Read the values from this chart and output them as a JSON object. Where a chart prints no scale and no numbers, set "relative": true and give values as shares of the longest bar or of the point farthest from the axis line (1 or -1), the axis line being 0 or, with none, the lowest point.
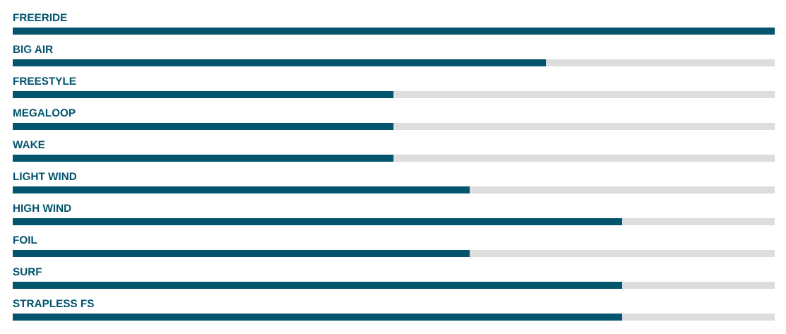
{
  "chart_data": {
    "type": "bar",
    "orientation": "horizontal",
    "stacked": true,
    "relative": true,
    "categories": [
      "FREERIDE",
      "BIG AIR",
      "FREESTYLE",
      "MEGALOOP",
      "WAKE",
      "LIGHT WIND",
      "HIGH WIND",
      "FOIL",
      "SURF",
      "STRAPLESS FS"
    ],
    "series": [
      {
        "color": "#03546d",
        "values": [
          1,
          0.7,
          0.5,
          0.5,
          0.5,
          0.6,
          0.8,
          0.6,
          0.8,
          0.8
        ]
      },
      {
        "color": "#dddddd",
        "values": [
          0,
          0.3,
          0.5,
          0.5,
          0.5,
          0.4,
          0.2,
          0.4,
          0.2,
          0.2
        ]
      }
    ]
  }
}
